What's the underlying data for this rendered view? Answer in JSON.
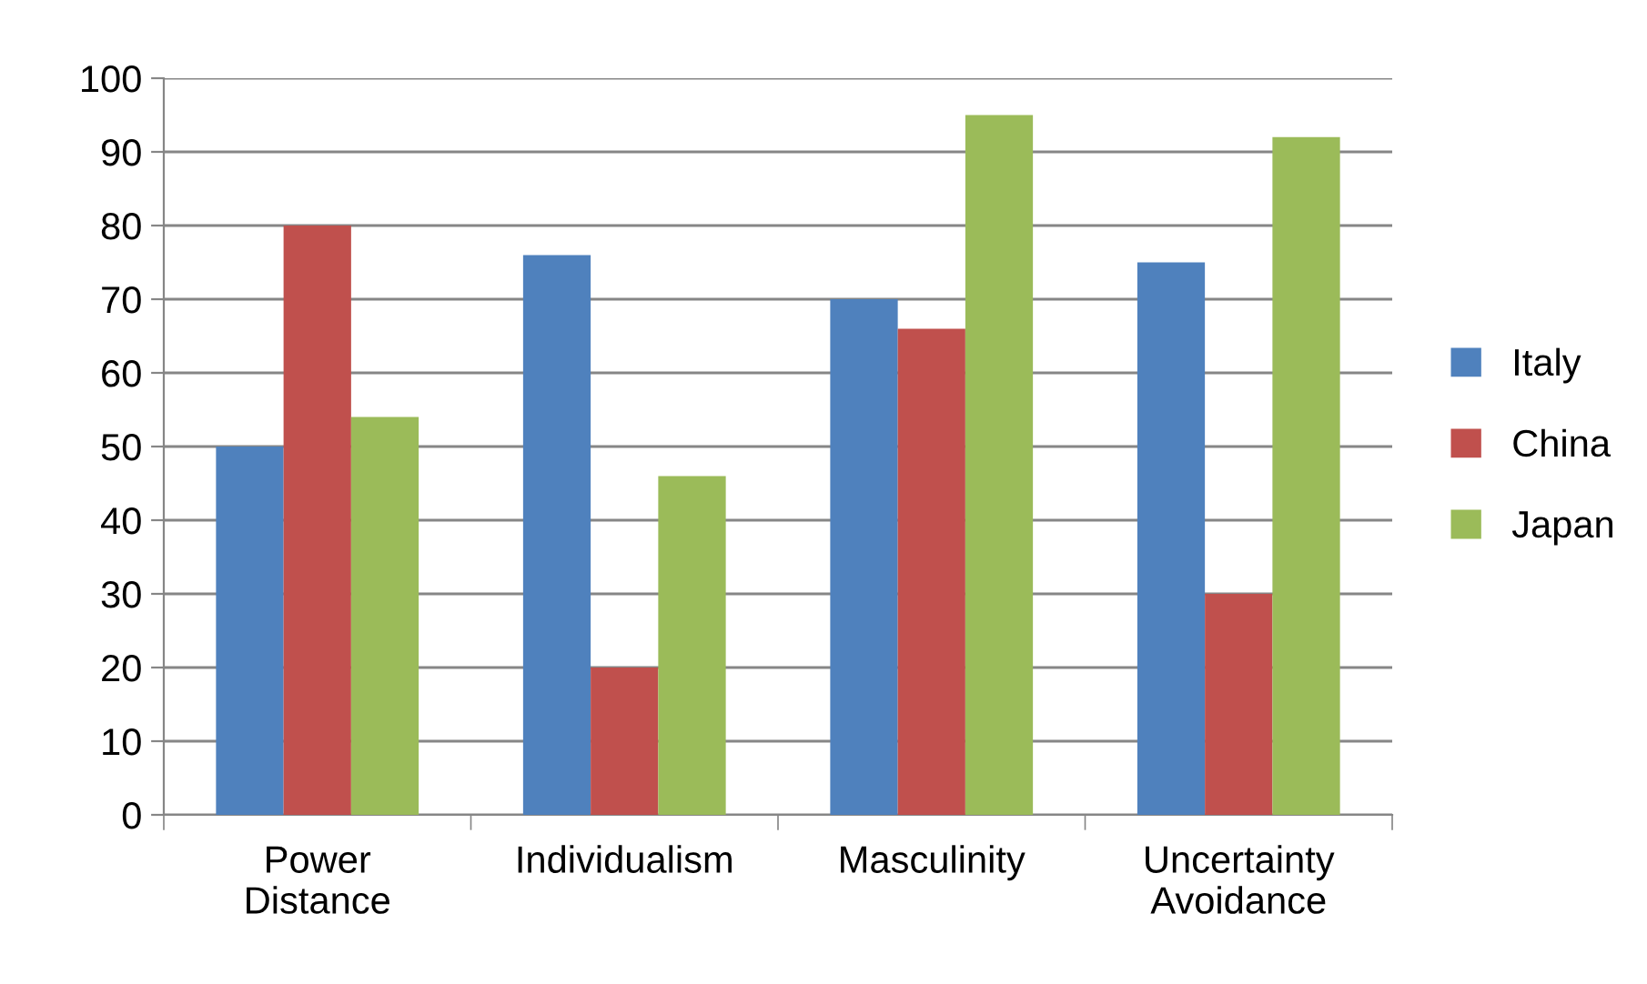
{
  "chart_data": {
    "type": "bar",
    "categories": [
      "Power\nDistance",
      "Individualism",
      "Masculinity",
      "Uncertainty\nAvoidance"
    ],
    "series": [
      {
        "name": "Italy",
        "color": "#4f81bd",
        "values": [
          50,
          76,
          70,
          75
        ]
      },
      {
        "name": "China",
        "color": "#c0504d",
        "values": [
          80,
          20,
          66,
          30
        ]
      },
      {
        "name": "Japan",
        "color": "#9bbb59",
        "values": [
          54,
          46,
          95,
          92
        ]
      }
    ],
    "ylim": [
      0,
      100
    ],
    "yticks": [
      0,
      10,
      20,
      30,
      40,
      50,
      60,
      70,
      80,
      90,
      100
    ],
    "grid": "y",
    "legend": "right"
  }
}
